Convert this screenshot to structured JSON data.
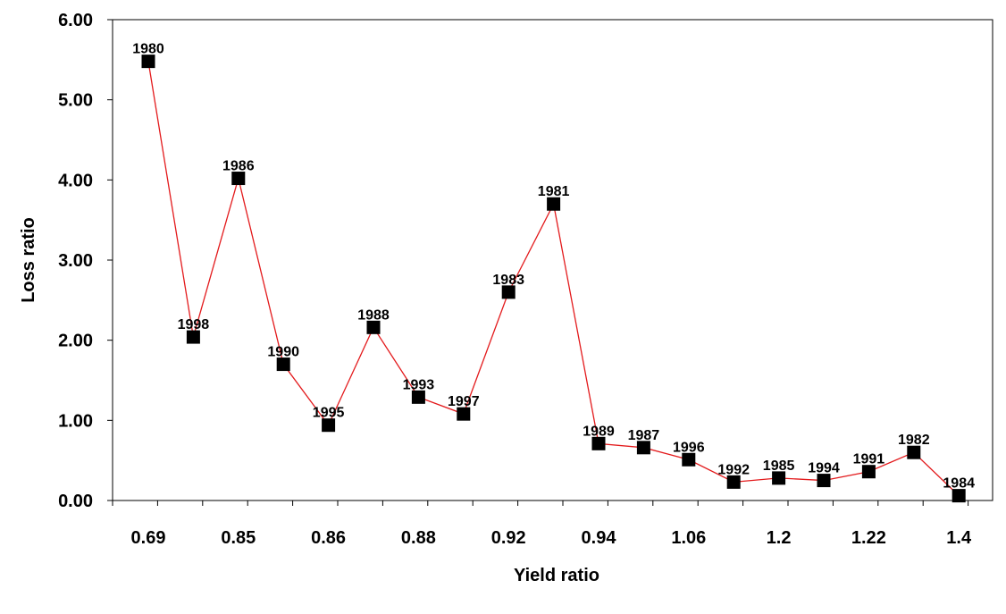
{
  "chart_data": {
    "type": "line",
    "title": "",
    "xlabel": "Yield ratio",
    "ylabel": "Loss ratio",
    "ylim": [
      0,
      6
    ],
    "y_ticks": [
      "0.00",
      "1.00",
      "2.00",
      "3.00",
      "4.00",
      "5.00",
      "6.00"
    ],
    "x_tick_labels": [
      "0.69",
      "0.85",
      "0.86",
      "0.88",
      "0.92",
      "0.94",
      "1.06",
      "1.2",
      "1.22",
      "1.4"
    ],
    "grid": false,
    "legend": "none",
    "line_color": "#e31a1c",
    "marker_color": "#000000",
    "marker": "square",
    "points": [
      {
        "label": "1980",
        "y": 5.48
      },
      {
        "label": "1998",
        "y": 2.04
      },
      {
        "label": "1986",
        "y": 4.02
      },
      {
        "label": "1990",
        "y": 1.7
      },
      {
        "label": "1995",
        "y": 0.94
      },
      {
        "label": "1988",
        "y": 2.16
      },
      {
        "label": "1993",
        "y": 1.29
      },
      {
        "label": "1997",
        "y": 1.08
      },
      {
        "label": "1983",
        "y": 2.6
      },
      {
        "label": "1981",
        "y": 3.7
      },
      {
        "label": "1989",
        "y": 0.71
      },
      {
        "label": "1987",
        "y": 0.66
      },
      {
        "label": "1996",
        "y": 0.51
      },
      {
        "label": "1992",
        "y": 0.23
      },
      {
        "label": "1985",
        "y": 0.28
      },
      {
        "label": "1994",
        "y": 0.25
      },
      {
        "label": "1991",
        "y": 0.36
      },
      {
        "label": "1982",
        "y": 0.6
      },
      {
        "label": "1984",
        "y": 0.06
      }
    ]
  }
}
